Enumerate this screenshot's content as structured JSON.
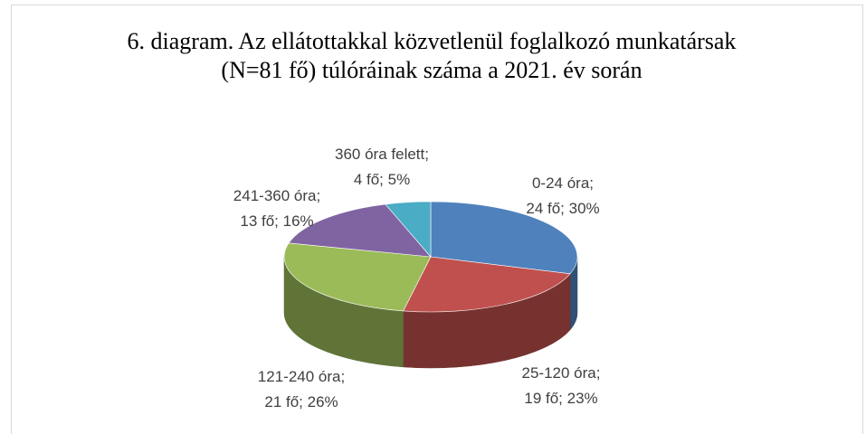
{
  "chart_data": {
    "type": "pie3d",
    "title": "6. diagram. Az ellátottakkal közvetlenül foglalkozó munkatársak (N=81 fő) túlóráinak száma a 2021. év során",
    "values": [
      30,
      23,
      26,
      16,
      5
    ],
    "value_labels": [
      "0-24 óra; 24 fő; 30%",
      "25-120 óra; 19 fő; 23%",
      "121-240 óra; 21 fő; 26%",
      "241-360 óra; 13 fő; 16%",
      "360 óra felett; 4 fő; 5%"
    ],
    "colors": [
      "#4f81bd",
      "#c0504d",
      "#9bbb59",
      "#8064a2",
      "#4bacc6"
    ]
  }
}
